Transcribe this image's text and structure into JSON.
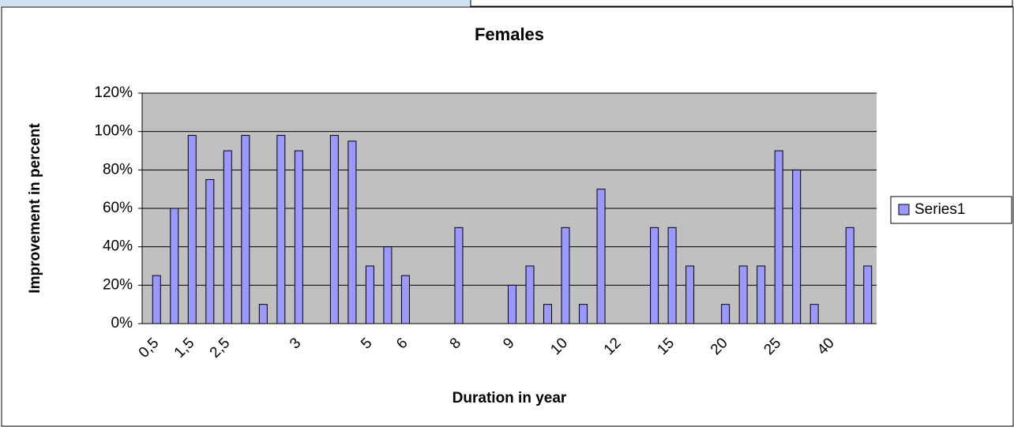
{
  "chart_data": {
    "type": "bar",
    "title": "Females",
    "x_label": "Duration in year",
    "y_label": "Improvement in percent",
    "categories": [
      "0,5",
      null,
      "1,5",
      null,
      "2,5",
      null,
      null,
      null,
      "3",
      null,
      null,
      null,
      "5",
      null,
      "6",
      null,
      null,
      "8",
      null,
      null,
      "9",
      null,
      null,
      "10",
      null,
      null,
      "12",
      null,
      null,
      "15",
      null,
      null,
      "20",
      null,
      null,
      "25",
      null,
      null,
      "40",
      null,
      null
    ],
    "series": [
      {
        "name": "Series1",
        "color": "#9999ff",
        "values": [
          25,
          60,
          98,
          75,
          90,
          98,
          10,
          98,
          90,
          0,
          98,
          95,
          30,
          40,
          25,
          0,
          0,
          50,
          0,
          0,
          20,
          30,
          10,
          50,
          10,
          70,
          0,
          0,
          50,
          50,
          30,
          0,
          10,
          30,
          30,
          90,
          80,
          10,
          0,
          50,
          30
        ]
      }
    ],
    "ylim": [
      0,
      120
    ],
    "yticks": [
      {
        "value": 0,
        "label": "0%"
      },
      {
        "value": 20,
        "label": "20%"
      },
      {
        "value": 40,
        "label": "40%"
      },
      {
        "value": 60,
        "label": "60%"
      },
      {
        "value": 80,
        "label": "80%"
      },
      {
        "value": 100,
        "label": "100%"
      },
      {
        "value": 120,
        "label": "120%"
      }
    ],
    "grid": true,
    "legend": "right"
  }
}
